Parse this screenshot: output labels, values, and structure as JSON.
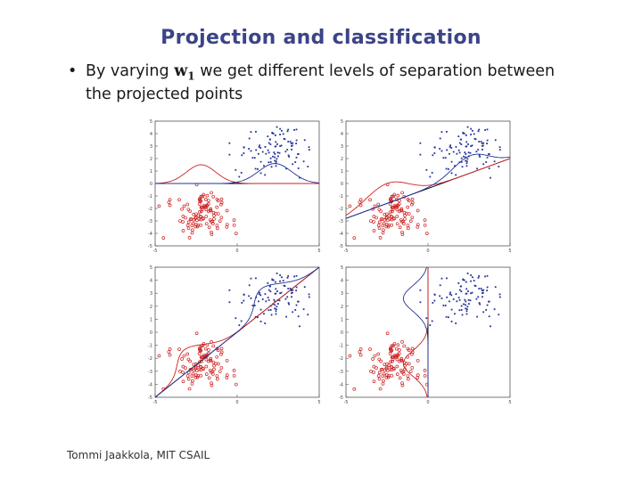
{
  "slide": {
    "title": "Projection and classification",
    "bullet": {
      "marker": "•",
      "line1_before": "By varying ",
      "w_symbol": "w",
      "w_subscript": "1",
      "line1_after": " we get different levels of separation between",
      "line2": "the projected points"
    },
    "footer": "Tommi Jaakkola, MIT CSAIL"
  },
  "figure": {
    "colors": {
      "class1": "#cc2222",
      "class2": "#223399",
      "projection_line": "#000000"
    },
    "panels": [
      {
        "xticks": [
          "-5",
          "0",
          "5"
        ],
        "yticks": [
          "5",
          "4",
          "3",
          "2",
          "1",
          "0",
          "-1",
          "-2",
          "-3",
          "-4",
          "-5"
        ],
        "projection": "horizontal"
      },
      {
        "xticks": [
          "-5",
          "0",
          "5"
        ],
        "yticks": [
          "5",
          "4",
          "3",
          "2",
          "1",
          "0",
          "-1",
          "-2",
          "-3",
          "-4",
          "-5"
        ],
        "projection": "shallow diagonal"
      },
      {
        "xticks": [
          "-5",
          "0",
          "5"
        ],
        "yticks": [
          "5",
          "4",
          "3",
          "2",
          "1",
          "0",
          "-1",
          "-2",
          "-3",
          "-4",
          "-5"
        ],
        "projection": "diagonal"
      },
      {
        "xticks": [
          "-5",
          "0",
          "5"
        ],
        "yticks": [
          "5",
          "4",
          "3",
          "2",
          "1",
          "0",
          "-1",
          "-2",
          "-3",
          "-4",
          "-5"
        ],
        "projection": "vertical"
      }
    ]
  }
}
